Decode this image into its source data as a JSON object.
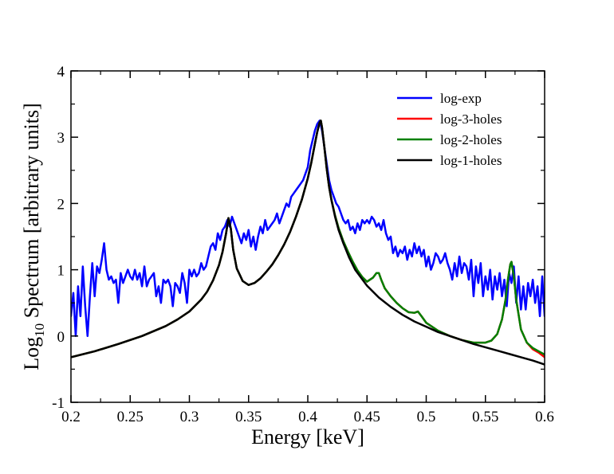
{
  "chart_data": {
    "type": "line",
    "title": "",
    "xlabel": "Energy [keV]",
    "ylabel": {
      "prefix": "Log",
      "subscript": "10",
      "suffix": " Spectrum [arbitrary units]"
    },
    "xlim": [
      0.2,
      0.6
    ],
    "ylim": [
      -1,
      4
    ],
    "xticks": [
      0.2,
      0.25,
      0.3,
      0.35,
      0.4,
      0.45,
      0.5,
      0.55,
      0.6
    ],
    "xtick_labels": [
      "0.2",
      "0.25",
      "0.3",
      "0.35",
      "0.4",
      "0.45",
      "0.5",
      "0.55",
      "0.6"
    ],
    "yticks": [
      -1,
      0,
      1,
      2,
      3,
      4
    ],
    "ytick_labels": [
      "-1",
      "0",
      "1",
      "2",
      "3",
      "4"
    ],
    "legend_position": "top-right",
    "grid": false,
    "series": [
      {
        "name": "log-exp",
        "color": "#0000ff",
        "x": [
          0.2,
          0.202,
          0.204,
          0.206,
          0.208,
          0.21,
          0.212,
          0.214,
          0.216,
          0.218,
          0.22,
          0.222,
          0.224,
          0.226,
          0.228,
          0.23,
          0.232,
          0.234,
          0.236,
          0.238,
          0.24,
          0.242,
          0.244,
          0.246,
          0.248,
          0.25,
          0.252,
          0.254,
          0.256,
          0.258,
          0.26,
          0.262,
          0.264,
          0.266,
          0.268,
          0.27,
          0.272,
          0.274,
          0.276,
          0.278,
          0.28,
          0.282,
          0.284,
          0.286,
          0.288,
          0.29,
          0.292,
          0.294,
          0.296,
          0.298,
          0.3,
          0.302,
          0.304,
          0.306,
          0.308,
          0.31,
          0.312,
          0.314,
          0.316,
          0.318,
          0.32,
          0.322,
          0.324,
          0.326,
          0.328,
          0.33,
          0.332,
          0.334,
          0.336,
          0.338,
          0.34,
          0.342,
          0.344,
          0.346,
          0.348,
          0.35,
          0.352,
          0.354,
          0.356,
          0.358,
          0.36,
          0.362,
          0.364,
          0.366,
          0.368,
          0.37,
          0.372,
          0.374,
          0.376,
          0.378,
          0.38,
          0.382,
          0.384,
          0.386,
          0.388,
          0.39,
          0.392,
          0.394,
          0.396,
          0.398,
          0.4,
          0.402,
          0.404,
          0.406,
          0.408,
          0.41,
          0.412,
          0.414,
          0.416,
          0.418,
          0.42,
          0.422,
          0.424,
          0.426,
          0.428,
          0.43,
          0.432,
          0.434,
          0.436,
          0.438,
          0.44,
          0.442,
          0.444,
          0.446,
          0.448,
          0.45,
          0.452,
          0.454,
          0.456,
          0.458,
          0.46,
          0.462,
          0.464,
          0.466,
          0.468,
          0.47,
          0.472,
          0.474,
          0.476,
          0.478,
          0.48,
          0.482,
          0.484,
          0.486,
          0.488,
          0.49,
          0.492,
          0.494,
          0.496,
          0.498,
          0.5,
          0.502,
          0.504,
          0.506,
          0.508,
          0.51,
          0.512,
          0.514,
          0.516,
          0.518,
          0.52,
          0.522,
          0.524,
          0.526,
          0.528,
          0.53,
          0.532,
          0.534,
          0.536,
          0.538,
          0.54,
          0.542,
          0.544,
          0.546,
          0.548,
          0.55,
          0.552,
          0.554,
          0.556,
          0.558,
          0.56,
          0.562,
          0.564,
          0.566,
          0.568,
          0.57,
          0.572,
          0.574,
          0.576,
          0.578,
          0.58,
          0.582,
          0.584,
          0.586,
          0.588,
          0.59,
          0.592,
          0.594,
          0.596,
          0.598,
          0.6
        ],
        "y": [
          0.3,
          0.65,
          0.0,
          0.75,
          0.3,
          1.05,
          0.45,
          0.0,
          0.6,
          1.1,
          0.6,
          1.05,
          0.95,
          1.15,
          1.4,
          1.0,
          0.85,
          0.9,
          0.8,
          0.85,
          0.5,
          0.95,
          0.8,
          0.9,
          1.0,
          0.9,
          0.85,
          1.0,
          0.85,
          0.95,
          0.75,
          1.05,
          0.75,
          0.85,
          0.9,
          0.95,
          0.6,
          0.75,
          0.5,
          0.85,
          0.8,
          0.85,
          0.75,
          0.45,
          0.8,
          0.75,
          0.65,
          0.95,
          0.8,
          0.5,
          1.0,
          0.9,
          1.0,
          0.9,
          0.95,
          1.1,
          1.0,
          1.05,
          1.2,
          1.35,
          1.4,
          1.3,
          1.55,
          1.45,
          1.6,
          1.65,
          1.75,
          1.65,
          1.8,
          1.7,
          1.6,
          1.5,
          1.4,
          1.55,
          1.45,
          1.6,
          1.35,
          1.5,
          1.3,
          1.5,
          1.65,
          1.55,
          1.75,
          1.6,
          1.65,
          1.7,
          1.75,
          1.85,
          1.7,
          1.8,
          1.9,
          2.0,
          1.95,
          2.1,
          2.15,
          2.2,
          2.25,
          2.3,
          2.35,
          2.45,
          2.55,
          2.8,
          2.95,
          3.1,
          3.2,
          3.25,
          3.1,
          2.85,
          2.6,
          2.35,
          2.2,
          2.1,
          2.0,
          1.95,
          1.85,
          1.75,
          1.7,
          1.75,
          1.6,
          1.65,
          1.55,
          1.7,
          1.6,
          1.75,
          1.7,
          1.75,
          1.7,
          1.8,
          1.75,
          1.65,
          1.7,
          1.6,
          1.75,
          1.55,
          1.45,
          1.5,
          1.25,
          1.35,
          1.2,
          1.3,
          1.25,
          1.35,
          1.15,
          1.3,
          1.2,
          1.4,
          1.25,
          1.35,
          1.2,
          1.3,
          1.05,
          1.2,
          1.0,
          1.1,
          1.25,
          1.2,
          1.1,
          1.15,
          1.25,
          1.1,
          1.0,
          0.85,
          1.1,
          0.9,
          1.2,
          0.95,
          1.1,
          1.05,
          0.85,
          1.15,
          0.6,
          1.05,
          0.8,
          1.1,
          0.6,
          0.9,
          0.7,
          1.0,
          0.55,
          0.9,
          0.7,
          0.95,
          0.6,
          0.85,
          0.45,
          0.95,
          0.8,
          1.05,
          0.5,
          0.9,
          0.4,
          0.75,
          0.4,
          0.8,
          0.6,
          0.85,
          0.5,
          0.75,
          0.3,
          0.9,
          0.3
        ]
      },
      {
        "name": "log-3-holes",
        "color": "#ff0000",
        "x": [
          0.2,
          0.22,
          0.24,
          0.26,
          0.28,
          0.29,
          0.3,
          0.31,
          0.315,
          0.32,
          0.325,
          0.328,
          0.331,
          0.333,
          0.335,
          0.337,
          0.34,
          0.345,
          0.35,
          0.355,
          0.36,
          0.365,
          0.37,
          0.375,
          0.38,
          0.385,
          0.39,
          0.395,
          0.4,
          0.403,
          0.406,
          0.408,
          0.41,
          0.411,
          0.412,
          0.414,
          0.416,
          0.418,
          0.42,
          0.423,
          0.426,
          0.43,
          0.434,
          0.438,
          0.442,
          0.446,
          0.45,
          0.455,
          0.458,
          0.46,
          0.462,
          0.465,
          0.47,
          0.475,
          0.48,
          0.485,
          0.49,
          0.493,
          0.496,
          0.5,
          0.51,
          0.52,
          0.53,
          0.54,
          0.55,
          0.555,
          0.56,
          0.564,
          0.567,
          0.569,
          0.571,
          0.572,
          0.574,
          0.576,
          0.58,
          0.585,
          0.59,
          0.595,
          0.6
        ],
        "y": [
          -0.32,
          -0.23,
          -0.12,
          0.0,
          0.15,
          0.25,
          0.37,
          0.55,
          0.67,
          0.84,
          1.07,
          1.27,
          1.55,
          1.78,
          1.62,
          1.3,
          1.02,
          0.83,
          0.77,
          0.8,
          0.87,
          0.97,
          1.08,
          1.22,
          1.38,
          1.57,
          1.8,
          2.06,
          2.38,
          2.62,
          2.9,
          3.08,
          3.22,
          3.25,
          3.15,
          2.85,
          2.52,
          2.25,
          2.05,
          1.82,
          1.63,
          1.43,
          1.27,
          1.12,
          0.99,
          0.89,
          0.82,
          0.88,
          0.95,
          0.95,
          0.85,
          0.72,
          0.6,
          0.5,
          0.42,
          0.36,
          0.35,
          0.37,
          0.3,
          0.2,
          0.08,
          0.0,
          -0.06,
          -0.1,
          -0.1,
          -0.07,
          0.03,
          0.25,
          0.55,
          0.85,
          1.08,
          1.12,
          0.9,
          0.55,
          0.1,
          -0.1,
          -0.2,
          -0.25,
          -0.32
        ]
      },
      {
        "name": "log-2-holes",
        "color": "#008000",
        "x": [
          0.2,
          0.22,
          0.24,
          0.26,
          0.28,
          0.29,
          0.3,
          0.31,
          0.315,
          0.32,
          0.325,
          0.328,
          0.331,
          0.333,
          0.335,
          0.337,
          0.34,
          0.345,
          0.35,
          0.355,
          0.36,
          0.365,
          0.37,
          0.375,
          0.38,
          0.385,
          0.39,
          0.395,
          0.4,
          0.403,
          0.406,
          0.408,
          0.41,
          0.411,
          0.412,
          0.414,
          0.416,
          0.418,
          0.42,
          0.423,
          0.426,
          0.43,
          0.434,
          0.438,
          0.442,
          0.446,
          0.45,
          0.455,
          0.458,
          0.46,
          0.462,
          0.465,
          0.47,
          0.475,
          0.48,
          0.485,
          0.49,
          0.493,
          0.496,
          0.5,
          0.51,
          0.52,
          0.53,
          0.54,
          0.55,
          0.555,
          0.56,
          0.564,
          0.567,
          0.569,
          0.571,
          0.572,
          0.574,
          0.576,
          0.58,
          0.585,
          0.59,
          0.595,
          0.6
        ],
        "y": [
          -0.32,
          -0.23,
          -0.12,
          0.0,
          0.15,
          0.25,
          0.37,
          0.55,
          0.67,
          0.84,
          1.07,
          1.27,
          1.55,
          1.78,
          1.62,
          1.3,
          1.02,
          0.83,
          0.77,
          0.8,
          0.87,
          0.97,
          1.08,
          1.22,
          1.38,
          1.57,
          1.8,
          2.06,
          2.38,
          2.62,
          2.9,
          3.08,
          3.22,
          3.25,
          3.15,
          2.85,
          2.52,
          2.25,
          2.05,
          1.82,
          1.63,
          1.43,
          1.27,
          1.12,
          0.99,
          0.89,
          0.82,
          0.88,
          0.95,
          0.95,
          0.85,
          0.72,
          0.6,
          0.5,
          0.42,
          0.36,
          0.35,
          0.37,
          0.3,
          0.2,
          0.08,
          0.0,
          -0.06,
          -0.1,
          -0.1,
          -0.07,
          0.03,
          0.25,
          0.55,
          0.85,
          1.08,
          1.12,
          0.9,
          0.55,
          0.1,
          -0.1,
          -0.18,
          -0.23,
          -0.28
        ]
      },
      {
        "name": "log-1-holes",
        "color": "#000000",
        "x": [
          0.2,
          0.22,
          0.24,
          0.26,
          0.28,
          0.29,
          0.3,
          0.31,
          0.315,
          0.32,
          0.325,
          0.328,
          0.331,
          0.333,
          0.335,
          0.337,
          0.34,
          0.345,
          0.35,
          0.355,
          0.36,
          0.365,
          0.37,
          0.375,
          0.38,
          0.385,
          0.39,
          0.395,
          0.4,
          0.403,
          0.406,
          0.408,
          0.41,
          0.411,
          0.412,
          0.414,
          0.416,
          0.418,
          0.42,
          0.423,
          0.426,
          0.43,
          0.435,
          0.44,
          0.45,
          0.46,
          0.47,
          0.48,
          0.49,
          0.5,
          0.51,
          0.52,
          0.53,
          0.54,
          0.55,
          0.56,
          0.57,
          0.58,
          0.59,
          0.6
        ],
        "y": [
          -0.32,
          -0.23,
          -0.12,
          0.0,
          0.15,
          0.25,
          0.37,
          0.55,
          0.67,
          0.84,
          1.07,
          1.27,
          1.55,
          1.78,
          1.62,
          1.3,
          1.02,
          0.83,
          0.77,
          0.8,
          0.87,
          0.97,
          1.08,
          1.22,
          1.38,
          1.57,
          1.8,
          2.06,
          2.38,
          2.62,
          2.9,
          3.08,
          3.22,
          3.25,
          3.15,
          2.85,
          2.52,
          2.25,
          2.05,
          1.8,
          1.6,
          1.4,
          1.18,
          1.0,
          0.76,
          0.58,
          0.44,
          0.32,
          0.22,
          0.14,
          0.06,
          0.0,
          -0.06,
          -0.12,
          -0.17,
          -0.22,
          -0.27,
          -0.32,
          -0.37,
          -0.43
        ]
      }
    ]
  }
}
